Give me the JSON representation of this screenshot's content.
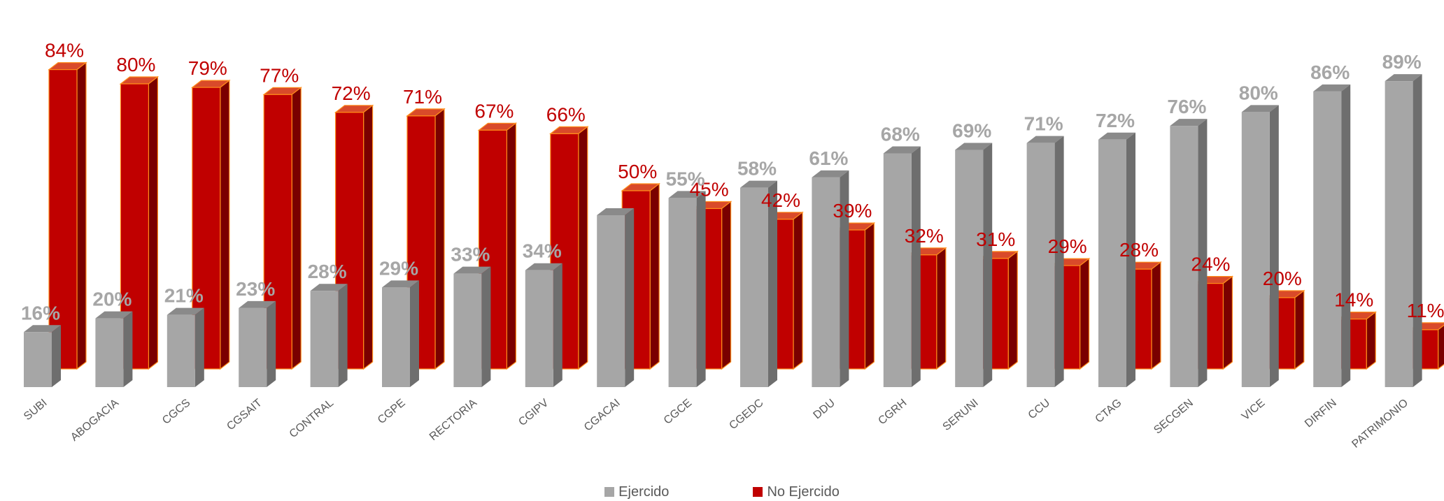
{
  "chart_data": {
    "type": "bar",
    "categories": [
      "SUBI",
      "ABOGACIA",
      "CGCS",
      "CGSAIT",
      "CONTRAL",
      "CGPE",
      "RECTORIA",
      "CGIPV",
      "CGACAI",
      "CGCE",
      "CGEDC",
      "DDU",
      "CGRH",
      "SERUNI",
      "CCU",
      "CTAG",
      "SECGEN",
      "VICE",
      "DIRFIN",
      "PATRIMONIO"
    ],
    "series": [
      {
        "name": "Ejercido",
        "values": [
          16,
          20,
          21,
          23,
          28,
          29,
          33,
          34,
          50,
          55,
          58,
          61,
          68,
          69,
          71,
          72,
          76,
          80,
          86,
          89
        ],
        "labels": [
          "16%",
          "20%",
          "21%",
          "23%",
          "28%",
          "29%",
          "33%",
          "34%",
          "",
          "55%",
          "58%",
          "61%",
          "68%",
          "69%",
          "71%",
          "72%",
          "76%",
          "80%",
          "86%",
          "89%"
        ]
      },
      {
        "name": "No Ejercido",
        "values": [
          84,
          80,
          79,
          77,
          72,
          71,
          67,
          66,
          50,
          45,
          42,
          39,
          32,
          31,
          29,
          28,
          24,
          20,
          14,
          11
        ],
        "labels": [
          "84%",
          "80%",
          "79%",
          "77%",
          "72%",
          "71%",
          "67%",
          "66%",
          "50%",
          "45%",
          "42%",
          "39%",
          "32%",
          "31%",
          "29%",
          "28%",
          "24%",
          "20%",
          "14%",
          "11%"
        ]
      }
    ],
    "ylim": [
      0,
      100
    ],
    "grid": false,
    "legend_position": "bottom",
    "colors": {
      "ejercido_front": "#a6a6a6",
      "ejercido_side": "#6e6e6e",
      "ejercido_top": "#8a8a8a",
      "no_ejercido_front": "#c00000",
      "no_ejercido_side": "#7a0000",
      "no_ejercido_top": "#d94a2a",
      "no_ejercido_edge": "#ff8c1a",
      "ejercido_label": "#a6a6a6",
      "no_ejercido_label": "#c00000",
      "category_label": "#595959"
    }
  },
  "legend": {
    "ejercido": "Ejercido",
    "no_ejercido": "No Ejercido"
  }
}
